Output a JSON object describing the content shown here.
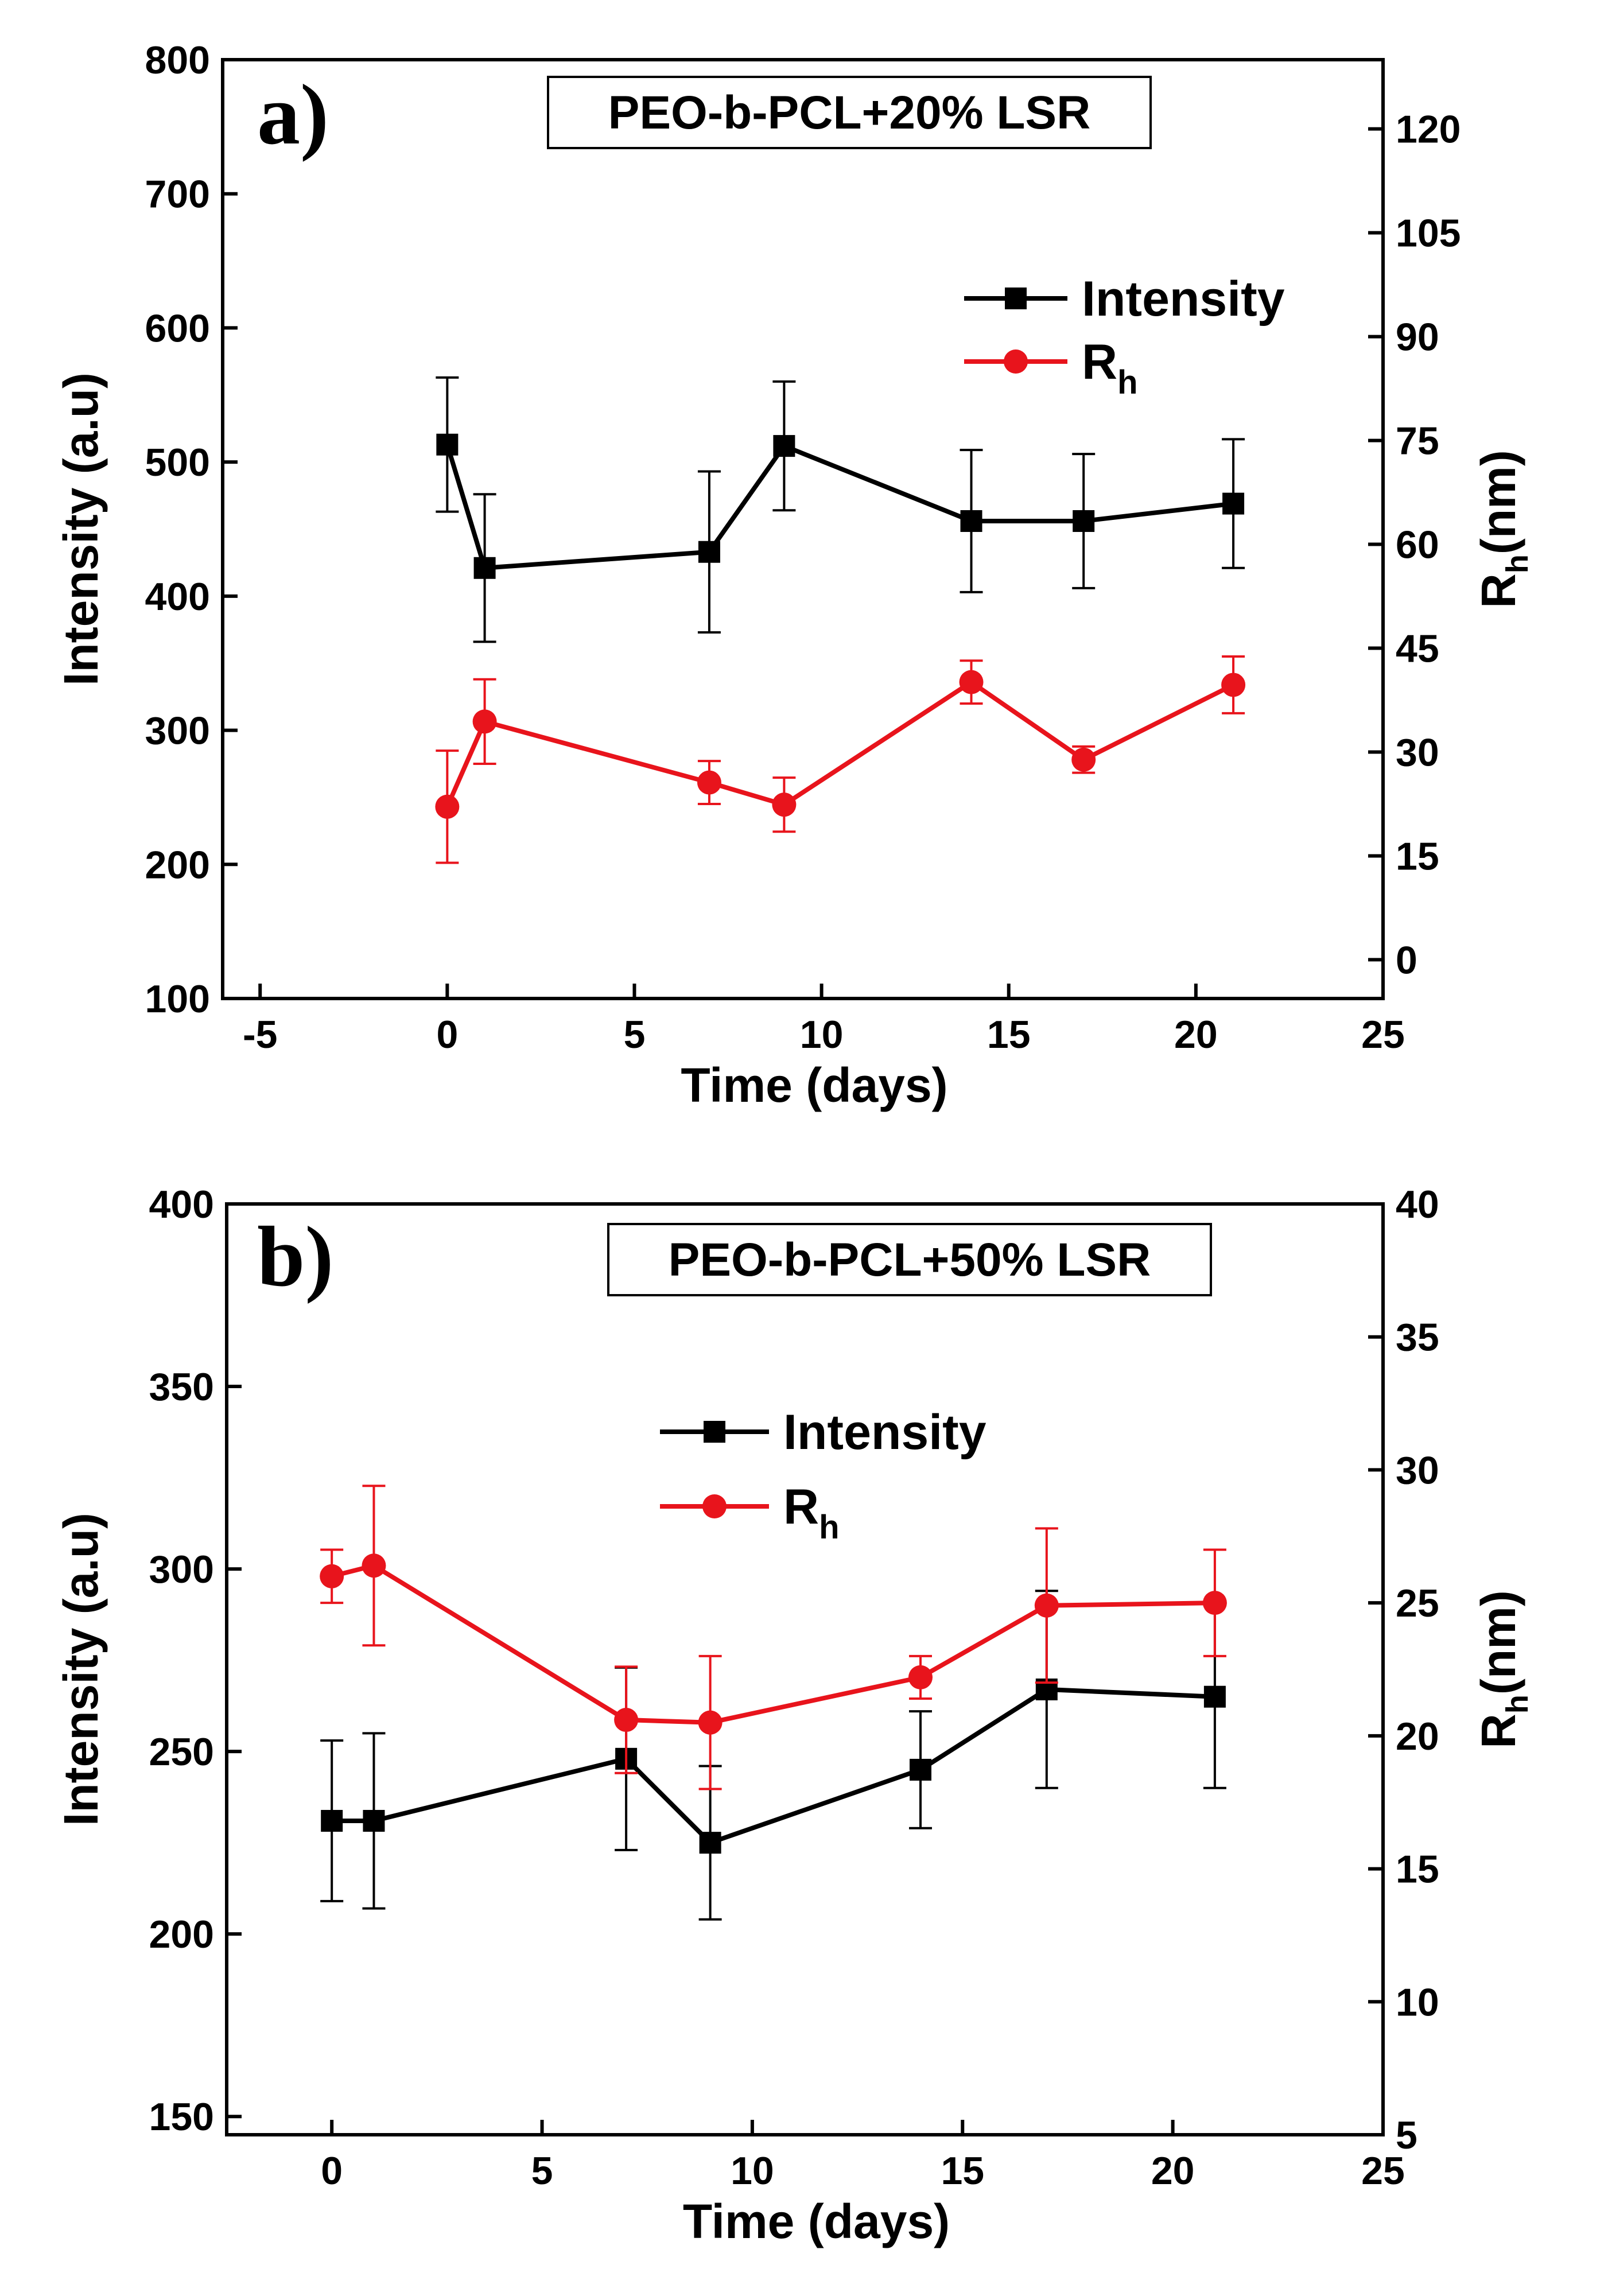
{
  "chart_data": [
    {
      "type": "line",
      "panel_label": "a)",
      "title": "PEO-b-PCL+20% LSR",
      "xlabel": "Time (days)",
      "ylabel": "Intensity (a.u)",
      "y2label_main": "R",
      "y2label_sub": "h",
      "y2label_tail": "(nm)",
      "xlim": [
        -6,
        25
      ],
      "ylim": [
        100,
        800
      ],
      "y2lim": [
        -5.6,
        130
      ],
      "xticks": [
        -5,
        0,
        5,
        10,
        15,
        20,
        25
      ],
      "yticks": [
        100,
        200,
        300,
        400,
        500,
        600,
        700,
        800
      ],
      "y2ticks": [
        0,
        15,
        30,
        45,
        60,
        75,
        90,
        105,
        120
      ],
      "legend_position": "upper-right",
      "series": [
        {
          "name": "Intensity",
          "legend_main": "Intensity",
          "legend_sub": "",
          "axis": "left",
          "marker": "square",
          "color": "#000000",
          "x": [
            0,
            1,
            7,
            9,
            14,
            17,
            21
          ],
          "values": [
            513,
            421,
            433,
            512,
            456,
            456,
            469
          ],
          "errors": [
            50,
            55,
            60,
            48,
            53,
            50,
            48
          ]
        },
        {
          "name": "Rh",
          "legend_main": "R",
          "legend_sub": "h",
          "axis": "right",
          "marker": "circle",
          "color": "#e8141c",
          "x": [
            0,
            1,
            7,
            9,
            14,
            17,
            21
          ],
          "values": [
            22.1,
            34.4,
            25.6,
            22.4,
            40.1,
            28.9,
            39.7
          ],
          "errors": [
            8.1,
            6.1,
            3.1,
            3.9,
            3.1,
            1.9,
            4.1
          ]
        }
      ]
    },
    {
      "type": "line",
      "panel_label": "b)",
      "title": "PEO-b-PCL+50% LSR",
      "xlabel": "Time (days)",
      "ylabel": "Intensity (a.u)",
      "y2label_main": "R",
      "y2label_sub": "h",
      "y2label_tail": "(nm)",
      "xlim": [
        -2.5,
        25
      ],
      "ylim": [
        145,
        400
      ],
      "y2lim": [
        5,
        40
      ],
      "xticks": [
        0,
        5,
        10,
        15,
        20,
        25
      ],
      "yticks": [
        150,
        200,
        250,
        300,
        350,
        400
      ],
      "y2ticks": [
        5,
        10,
        15,
        20,
        25,
        30,
        35,
        40
      ],
      "legend_position": "upper-center",
      "series": [
        {
          "name": "Intensity",
          "legend_main": "Intensity",
          "legend_sub": "",
          "axis": "left",
          "marker": "square",
          "color": "#000000",
          "x": [
            0,
            1,
            7,
            9,
            14,
            17,
            21
          ],
          "values": [
            231,
            231,
            248,
            225,
            245,
            267,
            265
          ],
          "errors": [
            22,
            24,
            25,
            21,
            16,
            27,
            25
          ]
        },
        {
          "name": "Rh",
          "legend_main": "R",
          "legend_sub": "h",
          "axis": "right",
          "marker": "circle",
          "color": "#e8141c",
          "x": [
            0,
            1,
            7,
            9,
            14,
            17,
            21
          ],
          "values": [
            26.0,
            26.4,
            20.6,
            20.5,
            22.2,
            24.9,
            25.0
          ],
          "errors": [
            1.0,
            3.0,
            2.0,
            2.5,
            0.8,
            2.9,
            2.0
          ]
        }
      ]
    }
  ]
}
